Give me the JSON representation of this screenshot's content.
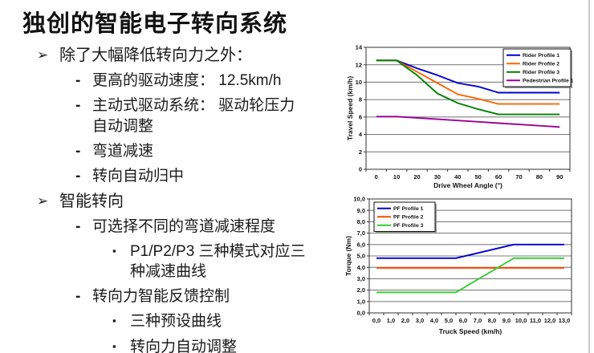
{
  "slide": {
    "title": "独创的智能电子转向系统",
    "bullets": [
      {
        "level": 1,
        "marker": "arrow",
        "text": "除了大幅降低转向力之外："
      },
      {
        "level": 2,
        "marker": "dash",
        "text": "更高的驱动速度： 12.5km/h"
      },
      {
        "level": 2,
        "marker": "dash",
        "text": "主动式驱动系统： 驱动轮压力\n自动调整"
      },
      {
        "level": 2,
        "marker": "dash",
        "text": "弯道减速"
      },
      {
        "level": 2,
        "marker": "dash",
        "text": "转向自动归中"
      },
      {
        "level": 1,
        "marker": "arrow",
        "text": "智能转向"
      },
      {
        "level": 2,
        "marker": "dash",
        "text": "可选择不同的弯道减速程度"
      },
      {
        "level": 3,
        "marker": "square",
        "text": "P1/P2/P3 三种模式对应三\n种减速曲线"
      },
      {
        "level": 2,
        "marker": "dash",
        "text": "转向力智能反馈控制"
      },
      {
        "level": 3,
        "marker": "square",
        "text": "三种预设曲线"
      },
      {
        "level": 3,
        "marker": "square",
        "text": "转向力自动调整"
      }
    ]
  },
  "chart_data": [
    {
      "type": "line",
      "title": "",
      "xlabel": "Drive Wheel Angle (°)",
      "ylabel": "Travel Speed (km/h)",
      "ylim": [
        0,
        14
      ],
      "grid": true,
      "grid_color": "#808080",
      "legend_position": "top-right",
      "xtick_values": [
        0,
        10,
        20,
        30,
        40,
        50,
        60,
        70,
        80,
        90
      ],
      "xtick_labels": [
        "0",
        "10",
        "20",
        "30",
        "40",
        "50",
        "60",
        "70",
        "80",
        "90"
      ],
      "ytick_labels": [
        "0",
        "2",
        "4",
        "6",
        "8",
        "10",
        "12",
        "14"
      ],
      "x": [
        0,
        10,
        20,
        30,
        40,
        50,
        60,
        70,
        80,
        90
      ],
      "series": [
        {
          "name": "Rider Profile 1",
          "color": "#0000CC",
          "values": [
            12.5,
            12.5,
            11.6,
            10.8,
            9.9,
            9.5,
            8.8,
            8.8,
            8.8,
            8.8
          ]
        },
        {
          "name": "Rider Profile 2",
          "color": "#FF6600",
          "values": [
            12.5,
            12.5,
            11.2,
            9.9,
            8.6,
            8.1,
            7.5,
            7.5,
            7.5,
            7.5
          ]
        },
        {
          "name": "Rider Profile 3",
          "color": "#008000",
          "values": [
            12.5,
            12.5,
            10.8,
            8.7,
            7.6,
            6.9,
            6.3,
            6.3,
            6.3,
            6.3
          ]
        },
        {
          "name": "Pedestrian Profile 1",
          "color": "#990099",
          "values": [
            6.05,
            6.05,
            5.9,
            5.75,
            5.6,
            5.45,
            5.3,
            5.15,
            5.0,
            4.85
          ]
        }
      ]
    },
    {
      "type": "line",
      "title": "",
      "xlabel": "Truck Speed (km/h)",
      "ylabel": "Torque (Nm)",
      "ylim": [
        0,
        10
      ],
      "grid": true,
      "grid_color": "#808080",
      "legend_position": "top-left",
      "xtick_values": [
        0,
        1,
        2,
        3,
        4,
        5,
        6,
        7,
        8,
        9,
        10,
        11,
        12,
        13
      ],
      "xtick_labels": [
        "0,0",
        "1,0",
        "2,0",
        "3,0",
        "4,0",
        "5,0",
        "6,0",
        "7,0",
        "8,0",
        "9,0",
        "10,0",
        "11,0",
        "12,0",
        "13,0"
      ],
      "ytick_labels": [
        "0,0",
        "1,0",
        "2,0",
        "3,0",
        "4,0",
        "5,0",
        "6,0",
        "7,0",
        "8,0",
        "9,0",
        "10,0"
      ],
      "series": [
        {
          "name": "PF Profile 1",
          "color": "#0000CC",
          "points": [
            [
              0,
              4.8
            ],
            [
              5.5,
              4.8
            ],
            [
              9.5,
              6.0
            ],
            [
              13,
              6.0
            ]
          ]
        },
        {
          "name": "PF Profile 2",
          "color": "#FF4500",
          "points": [
            [
              0,
              3.95
            ],
            [
              13,
              3.95
            ]
          ]
        },
        {
          "name": "PF Profile 3",
          "color": "#33CC33",
          "points": [
            [
              0,
              1.8
            ],
            [
              5.5,
              1.8
            ],
            [
              9.5,
              4.8
            ],
            [
              13,
              4.8
            ]
          ]
        }
      ]
    }
  ]
}
